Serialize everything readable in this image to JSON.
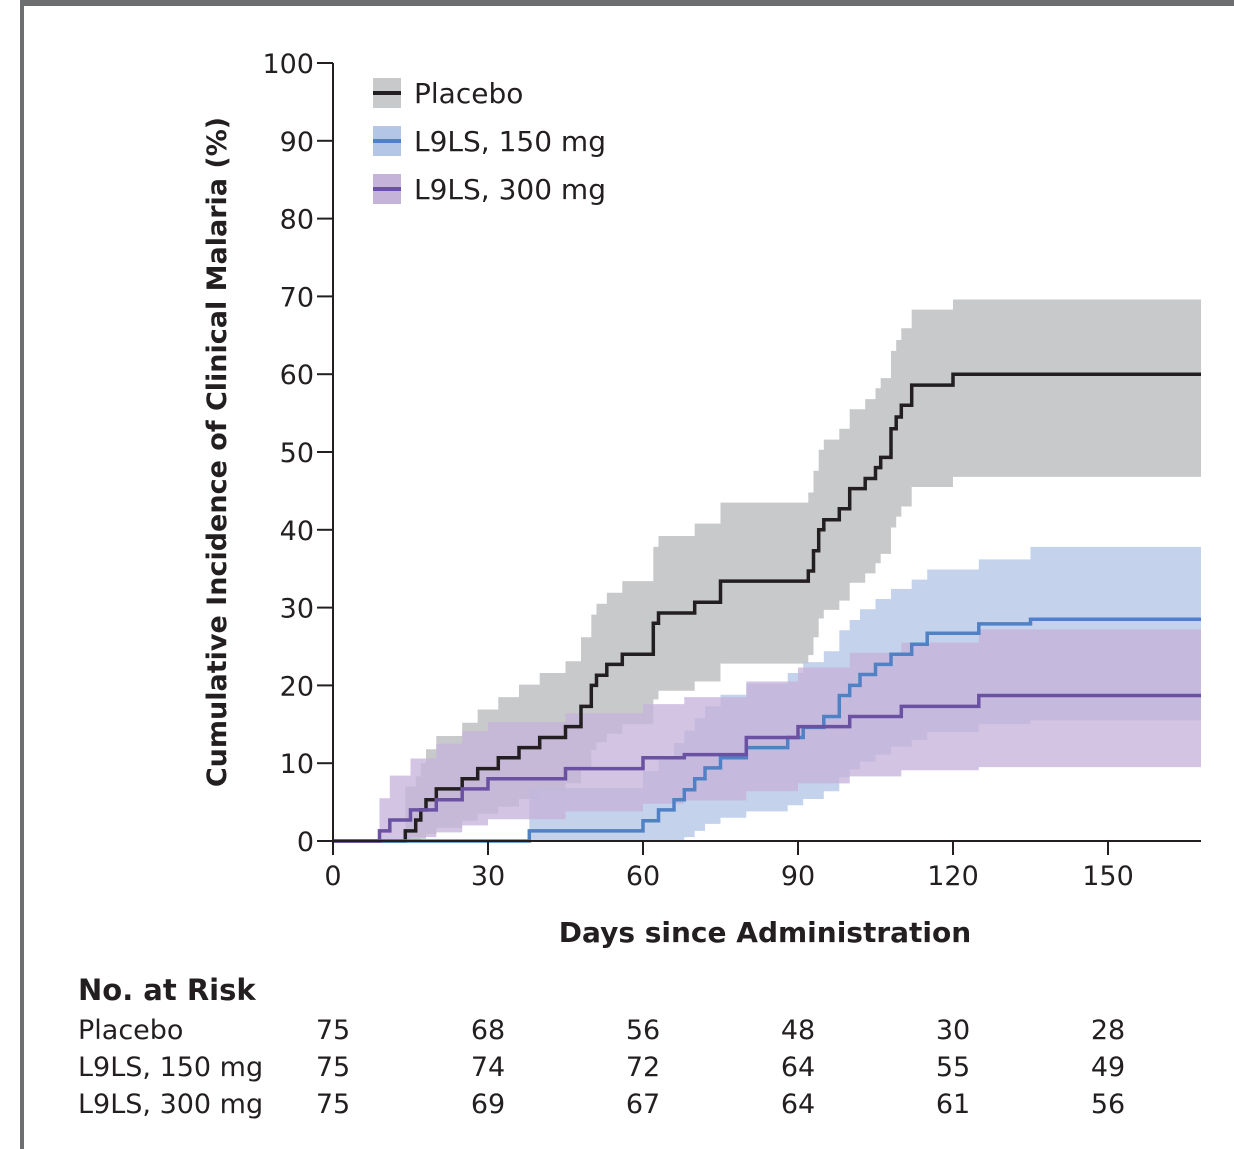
{
  "chart_data": {
    "type": "line",
    "subtype": "cumulative-incidence-step",
    "xlabel": "Days since Administration",
    "ylabel": "Cumulative Incidence of Clinical Malaria (%)",
    "xlim": [
      0,
      168
    ],
    "ylim": [
      0,
      100
    ],
    "xticks": [
      0,
      30,
      60,
      90,
      120,
      150
    ],
    "yticks": [
      0,
      10,
      20,
      30,
      40,
      50,
      60,
      70,
      80,
      90,
      100
    ],
    "legend_position": "top-left",
    "grid": false,
    "series": [
      {
        "name": "Placebo",
        "color": "#231f20",
        "band_color": "#c8c9cb",
        "x": [
          0,
          13,
          14,
          16,
          17,
          18,
          20,
          22,
          25,
          28,
          32,
          36,
          40,
          45,
          48,
          50,
          51,
          53,
          56,
          62,
          63,
          65,
          70,
          75,
          80,
          85,
          90,
          92,
          93,
          94,
          95,
          98,
          100,
          103,
          105,
          106,
          108,
          109,
          110,
          112,
          116,
          120,
          168
        ],
        "y": [
          0,
          0,
          1.3,
          2.7,
          4,
          5.3,
          6.7,
          6.7,
          8,
          9.3,
          10.7,
          12,
          13.3,
          14.7,
          17.3,
          20,
          21.3,
          22.7,
          24,
          28,
          29.3,
          29.3,
          30.7,
          33.4,
          33.4,
          33.4,
          33.4,
          34.7,
          37.3,
          40,
          41.3,
          42.7,
          45.3,
          46.6,
          48,
          49.3,
          53,
          54.5,
          56,
          58.6,
          58.6,
          60,
          60
        ],
        "lower": [
          0,
          0,
          0,
          0,
          0.3,
          0.9,
          1.7,
          1.7,
          2.6,
          3.5,
          4.4,
          5.4,
          6.4,
          7.4,
          9.5,
          11.7,
          12.7,
          13.8,
          15,
          18.2,
          19.3,
          19.3,
          20.5,
          22.8,
          22.8,
          22.8,
          22.8,
          23.9,
          26.2,
          28.6,
          29.7,
          30.9,
          33.2,
          34.4,
          35.7,
          36.9,
          40.3,
          41.7,
          43,
          45.5,
          45.5,
          46.8,
          46.8
        ],
        "upper": [
          0,
          0,
          7,
          8.3,
          10,
          11.8,
          13.5,
          13.5,
          15.2,
          16.9,
          18.5,
          20.1,
          21.6,
          23.1,
          26.2,
          29.1,
          30.5,
          31.9,
          33.4,
          37.8,
          39.2,
          39.2,
          40.8,
          43.5,
          43.5,
          43.5,
          43.5,
          44.8,
          47.6,
          50.3,
          51.6,
          53,
          55.5,
          56.8,
          58.2,
          59.5,
          63,
          64.4,
          65.9,
          68.3,
          68.3,
          69.6,
          69.6
        ]
      },
      {
        "name": "L9LS, 150 mg",
        "color": "#4f81c4",
        "band_color": "#b4c6e6",
        "x": [
          0,
          38,
          60,
          63,
          66,
          68,
          70,
          72,
          75,
          80,
          88,
          91,
          95,
          98,
          100,
          102,
          105,
          108,
          112,
          115,
          118,
          125,
          135,
          168
        ],
        "y": [
          0,
          1.3,
          2.6,
          4,
          5.3,
          6.6,
          8,
          9.4,
          10.7,
          12,
          13.3,
          14.6,
          16,
          18.7,
          20,
          21.4,
          22.7,
          24,
          25.3,
          26.7,
          26.7,
          27.9,
          28.5,
          28.5
        ],
        "lower": [
          0,
          0,
          0,
          0,
          0,
          0.5,
          1.3,
          2.2,
          3,
          3.8,
          4.6,
          5.4,
          6.4,
          8.2,
          9.2,
          10.2,
          11.1,
          12.1,
          13,
          14,
          14,
          15,
          15.5,
          15.5
        ],
        "upper": [
          0,
          6.8,
          9,
          10.9,
          12.6,
          14.2,
          15.8,
          17.3,
          18.8,
          20.2,
          21.6,
          23,
          24.4,
          27.1,
          28.4,
          29.8,
          31.1,
          32.4,
          33.6,
          34.9,
          34.9,
          36.2,
          37.8,
          37.8
        ]
      },
      {
        "name": "L9LS, 300 mg",
        "color": "#6b51a2",
        "band_color": "#c5b3da",
        "x": [
          0,
          9,
          11,
          15,
          20,
          25,
          30,
          35,
          45,
          60,
          68,
          80,
          90,
          100,
          110,
          125,
          168
        ],
        "y": [
          0,
          1.3,
          2.7,
          4,
          5.3,
          6.7,
          8,
          8,
          9.3,
          10.7,
          11.1,
          13.3,
          14.7,
          16,
          17.3,
          18.7,
          18.7
        ],
        "lower": [
          0,
          0,
          0,
          0.5,
          1.1,
          2,
          2.8,
          2.8,
          3.8,
          4.8,
          5.2,
          6.4,
          7.4,
          8.3,
          9.1,
          9.5,
          9.5
        ],
        "upper": [
          0,
          5.5,
          8.4,
          10.6,
          12.5,
          14.1,
          15.3,
          15.3,
          16.4,
          17.6,
          18.5,
          20.5,
          22.3,
          24.2,
          25.5,
          27.2,
          27.2
        ]
      }
    ],
    "risk_table": {
      "title": "No. at Risk",
      "timepoints": [
        0,
        30,
        60,
        90,
        120,
        150
      ],
      "rows": [
        {
          "label": "Placebo",
          "values": [
            "75",
            "68",
            "56",
            "48",
            "30",
            "28"
          ]
        },
        {
          "label": "L9LS, 150 mg",
          "values": [
            "75",
            "74",
            "72",
            "64",
            "55",
            "49"
          ]
        },
        {
          "label": "L9LS, 300 mg",
          "values": [
            "75",
            "69",
            "67",
            "64",
            "61",
            "56"
          ]
        }
      ]
    }
  }
}
